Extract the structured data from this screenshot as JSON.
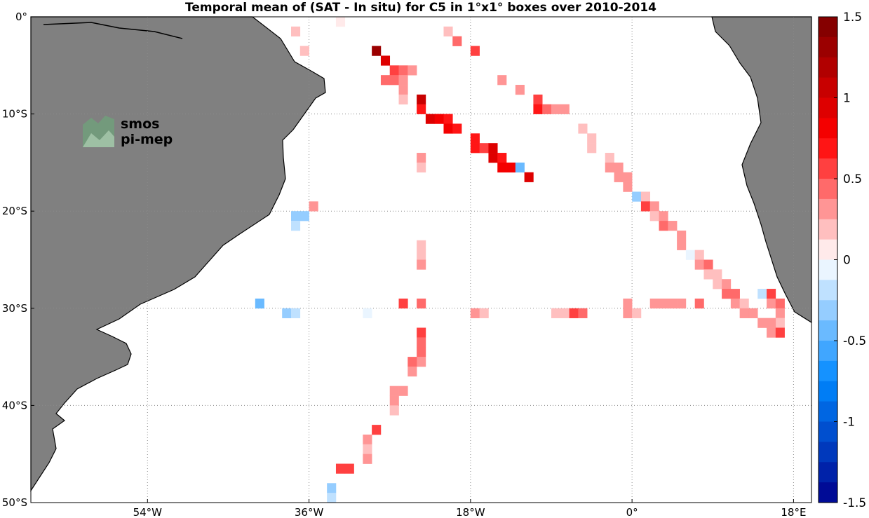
{
  "chart_data": {
    "type": "heatmap",
    "title": "Temporal mean of (SAT - In situ) for C5 in 1°x1° boxes over 2010-2014",
    "xlim": [
      -67,
      20
    ],
    "ylim": [
      -50,
      0
    ],
    "grid": true,
    "x_ticks": [
      {
        "value": -54,
        "label": "54°W"
      },
      {
        "value": -36,
        "label": "36°W"
      },
      {
        "value": -18,
        "label": "18°W"
      },
      {
        "value": 0,
        "label": "0°"
      },
      {
        "value": 18,
        "label": "18°E"
      }
    ],
    "y_ticks": [
      {
        "value": 0,
        "label": "0°"
      },
      {
        "value": -10,
        "label": "10°S"
      },
      {
        "value": -20,
        "label": "20°S"
      },
      {
        "value": -30,
        "label": "30°S"
      },
      {
        "value": -40,
        "label": "40°S"
      },
      {
        "value": -50,
        "label": "50°S"
      }
    ],
    "colorbar": {
      "min": -1.5,
      "max": 1.5,
      "step": 0.125,
      "ticks": [
        {
          "value": 1.5,
          "label": "1.5"
        },
        {
          "value": 1,
          "label": "1"
        },
        {
          "value": 0.5,
          "label": "0.5"
        },
        {
          "value": 0,
          "label": "0"
        },
        {
          "value": -0.5,
          "label": "-0.5"
        },
        {
          "value": -1,
          "label": "-1"
        },
        {
          "value": -1.5,
          "label": "-1.5"
        }
      ]
    },
    "cells": [
      {
        "lon": -38,
        "lat": -1,
        "v": 0.15
      },
      {
        "lon": -33,
        "lat": 0,
        "v": 0.1
      },
      {
        "lon": -37,
        "lat": -3,
        "v": 0.2
      },
      {
        "lon": -21,
        "lat": -1,
        "v": 0.15
      },
      {
        "lon": -20,
        "lat": -2,
        "v": 0.4
      },
      {
        "lon": -18,
        "lat": -3,
        "v": 0.6
      },
      {
        "lon": -29,
        "lat": -3,
        "v": 1.25
      },
      {
        "lon": -28,
        "lat": -4,
        "v": 0.95
      },
      {
        "lon": -27,
        "lat": -5,
        "v": 0.55
      },
      {
        "lon": -26,
        "lat": -5,
        "v": 0.45
      },
      {
        "lon": -25,
        "lat": -5,
        "v": 0.35
      },
      {
        "lon": -28,
        "lat": -6,
        "v": 0.4
      },
      {
        "lon": -27,
        "lat": -6,
        "v": 0.4
      },
      {
        "lon": -26,
        "lat": -6,
        "v": 0.3
      },
      {
        "lon": -26,
        "lat": -7,
        "v": 0.25
      },
      {
        "lon": -26,
        "lat": -8,
        "v": 0.2
      },
      {
        "lon": -24,
        "lat": -8,
        "v": 1.1
      },
      {
        "lon": -24,
        "lat": -9,
        "v": 0.7
      },
      {
        "lon": -23,
        "lat": -10,
        "v": 0.95
      },
      {
        "lon": -22,
        "lat": -10,
        "v": 0.75
      },
      {
        "lon": -21,
        "lat": -10,
        "v": 0.7
      },
      {
        "lon": -21,
        "lat": -11,
        "v": 0.75
      },
      {
        "lon": -20,
        "lat": -11,
        "v": 0.7
      },
      {
        "lon": -18,
        "lat": -12,
        "v": 0.7
      },
      {
        "lon": -18,
        "lat": -13,
        "v": 0.7
      },
      {
        "lon": -17,
        "lat": -13,
        "v": 0.6
      },
      {
        "lon": -16,
        "lat": -13,
        "v": 0.9
      },
      {
        "lon": -16,
        "lat": -14,
        "v": 0.95
      },
      {
        "lon": -15,
        "lat": -14,
        "v": 0.7
      },
      {
        "lon": -15,
        "lat": -15,
        "v": 0.85
      },
      {
        "lon": -14,
        "lat": -15,
        "v": 0.85
      },
      {
        "lon": -13,
        "lat": -15,
        "v": -0.5
      },
      {
        "lon": -12,
        "lat": -16,
        "v": 0.95
      },
      {
        "lon": -24,
        "lat": -14,
        "v": 0.25
      },
      {
        "lon": -24,
        "lat": -15,
        "v": 0.2
      },
      {
        "lon": -15,
        "lat": -6,
        "v": 0.25
      },
      {
        "lon": -13,
        "lat": -7,
        "v": 0.25
      },
      {
        "lon": -11,
        "lat": -8,
        "v": 0.55
      },
      {
        "lon": -11,
        "lat": -9,
        "v": 0.65
      },
      {
        "lon": -10,
        "lat": -9,
        "v": 0.45
      },
      {
        "lon": -9,
        "lat": -9,
        "v": 0.3
      },
      {
        "lon": -8,
        "lat": -9,
        "v": 0.3
      },
      {
        "lon": -6,
        "lat": -11,
        "v": 0.15
      },
      {
        "lon": -5,
        "lat": -12,
        "v": 0.15
      },
      {
        "lon": -5,
        "lat": -13,
        "v": 0.15
      },
      {
        "lon": -3,
        "lat": -14,
        "v": 0.2
      },
      {
        "lon": -3,
        "lat": -15,
        "v": 0.3
      },
      {
        "lon": -2,
        "lat": -15,
        "v": 0.3
      },
      {
        "lon": -2,
        "lat": -16,
        "v": 0.35
      },
      {
        "lon": -1,
        "lat": -16,
        "v": 0.25
      },
      {
        "lon": -1,
        "lat": -17,
        "v": 0.35
      },
      {
        "lon": 0,
        "lat": -18,
        "v": -0.3
      },
      {
        "lon": 1,
        "lat": -18,
        "v": 0.2
      },
      {
        "lon": 1,
        "lat": -19,
        "v": 0.55
      },
      {
        "lon": 2,
        "lat": -19,
        "v": 0.3
      },
      {
        "lon": 2,
        "lat": -20,
        "v": 0.2
      },
      {
        "lon": 3,
        "lat": -20,
        "v": 0.3
      },
      {
        "lon": 3,
        "lat": -21,
        "v": 0.45
      },
      {
        "lon": 4,
        "lat": -21,
        "v": 0.25
      },
      {
        "lon": 5,
        "lat": -22,
        "v": 0.3
      },
      {
        "lon": 5,
        "lat": -23,
        "v": 0.25
      },
      {
        "lon": 6,
        "lat": -24,
        "v": -0.1
      },
      {
        "lon": 7,
        "lat": -24,
        "v": 0.2
      },
      {
        "lon": 7,
        "lat": -25,
        "v": 0.25
      },
      {
        "lon": 8,
        "lat": -25,
        "v": 0.4
      },
      {
        "lon": 8,
        "lat": -26,
        "v": 0.2
      },
      {
        "lon": 9,
        "lat": -26,
        "v": 0.2
      },
      {
        "lon": 9,
        "lat": -27,
        "v": 0.2
      },
      {
        "lon": 10,
        "lat": -27,
        "v": 0.25
      },
      {
        "lon": 10,
        "lat": -28,
        "v": 0.4
      },
      {
        "lon": 11,
        "lat": -28,
        "v": 0.45
      },
      {
        "lon": 11,
        "lat": -29,
        "v": 0.25
      },
      {
        "lon": 12,
        "lat": -29,
        "v": 0.2
      },
      {
        "lon": 12,
        "lat": -30,
        "v": 0.25
      },
      {
        "lon": 13,
        "lat": -30,
        "v": 0.35
      },
      {
        "lon": 14,
        "lat": -28,
        "v": -0.2
      },
      {
        "lon": 15,
        "lat": -28,
        "v": 0.55
      },
      {
        "lon": 15,
        "lat": -29,
        "v": 0.35
      },
      {
        "lon": 16,
        "lat": -29,
        "v": 0.4
      },
      {
        "lon": 16,
        "lat": -30,
        "v": 0.3
      },
      {
        "lon": 16,
        "lat": -31,
        "v": 0.2
      },
      {
        "lon": 14,
        "lat": -31,
        "v": 0.3
      },
      {
        "lon": 15,
        "lat": -31,
        "v": 0.35
      },
      {
        "lon": 15,
        "lat": -32,
        "v": 0.3
      },
      {
        "lon": 16,
        "lat": -32,
        "v": 0.5
      },
      {
        "lon": -36,
        "lat": -19,
        "v": 0.35
      },
      {
        "lon": -38,
        "lat": -20,
        "v": -0.35
      },
      {
        "lon": -37,
        "lat": -20,
        "v": -0.3
      },
      {
        "lon": -38,
        "lat": -21,
        "v": -0.15
      },
      {
        "lon": -24,
        "lat": -23,
        "v": 0.2
      },
      {
        "lon": -24,
        "lat": -24,
        "v": 0.2
      },
      {
        "lon": -24,
        "lat": -25,
        "v": 0.25
      },
      {
        "lon": -42,
        "lat": -29,
        "v": -0.45
      },
      {
        "lon": -39,
        "lat": -30,
        "v": -0.35
      },
      {
        "lon": -38,
        "lat": -30,
        "v": -0.15
      },
      {
        "lon": -30,
        "lat": -30,
        "v": -0.1
      },
      {
        "lon": -26,
        "lat": -29,
        "v": 0.5
      },
      {
        "lon": -24,
        "lat": -29,
        "v": 0.4
      },
      {
        "lon": -18,
        "lat": -30,
        "v": 0.3
      },
      {
        "lon": -17,
        "lat": -30,
        "v": 0.2
      },
      {
        "lon": -9,
        "lat": -30,
        "v": 0.15
      },
      {
        "lon": -8,
        "lat": -30,
        "v": 0.2
      },
      {
        "lon": -7,
        "lat": -30,
        "v": 0.5
      },
      {
        "lon": -6,
        "lat": -30,
        "v": 0.45
      },
      {
        "lon": -1,
        "lat": -29,
        "v": 0.35
      },
      {
        "lon": -1,
        "lat": -30,
        "v": 0.3
      },
      {
        "lon": 0,
        "lat": -30,
        "v": 0.15
      },
      {
        "lon": 2,
        "lat": -29,
        "v": 0.3
      },
      {
        "lon": 3,
        "lat": -29,
        "v": 0.35
      },
      {
        "lon": 4,
        "lat": -29,
        "v": 0.3
      },
      {
        "lon": 5,
        "lat": -29,
        "v": 0.35
      },
      {
        "lon": 7,
        "lat": -29,
        "v": 0.4
      },
      {
        "lon": -24,
        "lat": -32,
        "v": 0.5
      },
      {
        "lon": -24,
        "lat": -33,
        "v": 0.45
      },
      {
        "lon": -24,
        "lat": -34,
        "v": 0.4
      },
      {
        "lon": -24,
        "lat": -35,
        "v": 0.3
      },
      {
        "lon": -25,
        "lat": -35,
        "v": 0.4
      },
      {
        "lon": -25,
        "lat": -36,
        "v": 0.25
      },
      {
        "lon": -27,
        "lat": -38,
        "v": 0.35
      },
      {
        "lon": -26,
        "lat": -38,
        "v": 0.25
      },
      {
        "lon": -27,
        "lat": -39,
        "v": 0.3
      },
      {
        "lon": -27,
        "lat": -40,
        "v": 0.2
      },
      {
        "lon": -29,
        "lat": -42,
        "v": 0.6
      },
      {
        "lon": -30,
        "lat": -43,
        "v": 0.35
      },
      {
        "lon": -30,
        "lat": -44,
        "v": 0.2
      },
      {
        "lon": -30,
        "lat": -45,
        "v": 0.3
      },
      {
        "lon": -33,
        "lat": -46,
        "v": 0.55
      },
      {
        "lon": -32,
        "lat": -46,
        "v": 0.5
      },
      {
        "lon": -34,
        "lat": -48,
        "v": -0.3
      },
      {
        "lon": -34,
        "lat": -49,
        "v": -0.2
      }
    ]
  },
  "logo": {
    "line1": "smos",
    "line2": "pi-mep",
    "color": "#4a8a5c"
  },
  "colors": {
    "land": "#808080",
    "coast": "#000000",
    "grid": "#8a8a8a"
  }
}
